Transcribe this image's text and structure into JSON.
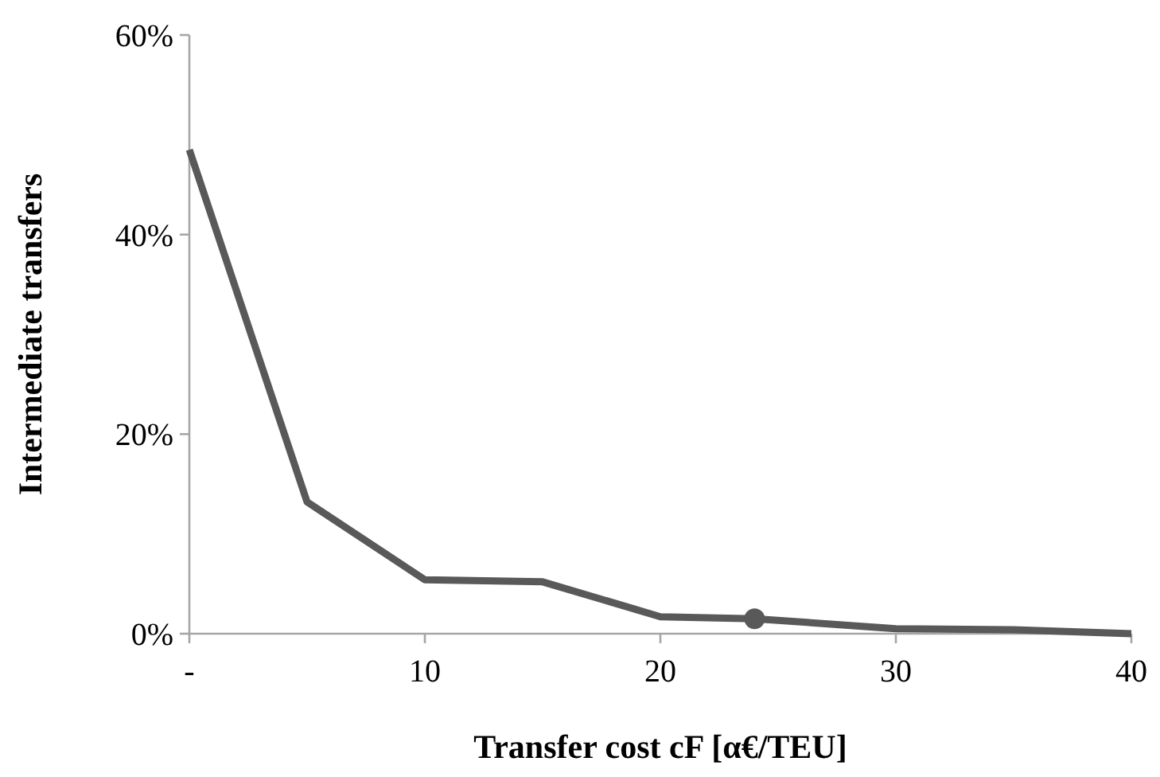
{
  "chart_data": {
    "type": "line",
    "xlabel": "Transfer cost cF  [α€/TEU]",
    "ylabel": "Intermediate transfers",
    "x": [
      0,
      5,
      10,
      15,
      20,
      24,
      30,
      35,
      40
    ],
    "series": [
      {
        "color": "#595959",
        "values": [
          48.5,
          13.2,
          5.4,
          5.2,
          1.7,
          1.5,
          0.5,
          0.4,
          0
        ]
      },
      {
        "type": "scatter",
        "marker": "circle",
        "color": "#595959",
        "x": [
          24
        ],
        "values": [
          1.5
        ]
      }
    ],
    "xlim": [
      0,
      40
    ],
    "xticks": [
      {
        "value": 0,
        "label": "-"
      },
      10,
      20,
      30,
      40
    ],
    "ylim": [
      0,
      60
    ],
    "yticks": [
      {
        "value": 0,
        "label": "0%"
      },
      {
        "value": 20,
        "label": "20%"
      },
      {
        "value": 40,
        "label": "40%"
      },
      {
        "value": 60,
        "label": "60%"
      }
    ],
    "grid": false,
    "marker": "none",
    "line_style": "solid"
  }
}
